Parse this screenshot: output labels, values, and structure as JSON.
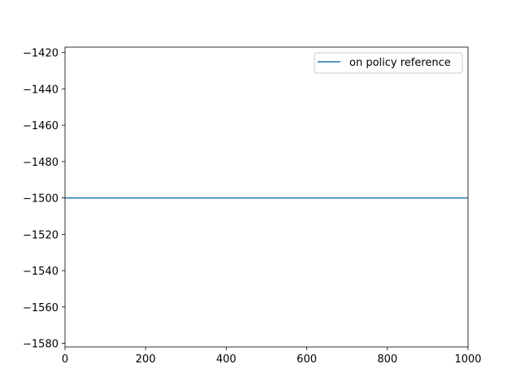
{
  "chart_data": {
    "type": "line",
    "title": "",
    "xlabel": "",
    "ylabel": "",
    "xlim": [
      0,
      1000
    ],
    "ylim": [
      -1582,
      -1417
    ],
    "x_ticks": [
      0,
      200,
      400,
      600,
      800,
      1000
    ],
    "x_tick_labels": [
      "0",
      "200",
      "400",
      "600",
      "800",
      "1000"
    ],
    "y_ticks": [
      -1420,
      -1440,
      -1460,
      -1480,
      -1500,
      -1520,
      -1540,
      -1560,
      -1580
    ],
    "y_tick_labels": [
      "−1420",
      "−1440",
      "−1460",
      "−1480",
      "−1500",
      "−1520",
      "−1540",
      "−1560",
      "−1580"
    ],
    "grid": false,
    "legend_position": "top-right",
    "series": [
      {
        "name": "on policy reference",
        "color": "#1f77b4",
        "x": [
          0,
          1000
        ],
        "values": [
          -1500,
          -1500
        ]
      }
    ]
  }
}
